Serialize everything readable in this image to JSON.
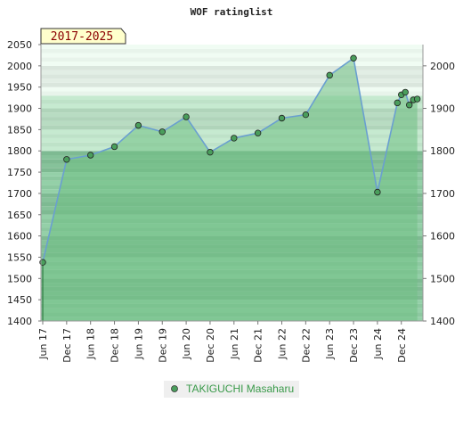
{
  "chart_data": {
    "type": "area",
    "title": "WOF ratinglist",
    "period_label": "2017-2025",
    "ylim": [
      1400,
      2050
    ],
    "yticks_left": [
      1400,
      1450,
      1500,
      1550,
      1600,
      1650,
      1700,
      1750,
      1800,
      1850,
      1900,
      1950,
      2000,
      2050
    ],
    "yticks_right": [
      1400,
      1500,
      1600,
      1700,
      1800,
      1900,
      2000
    ],
    "xtick_labels": [
      "Jun 17",
      "Dec 17",
      "Jun 18",
      "Dec 18",
      "Jun 19",
      "Dec 19",
      "Jun 20",
      "Dec 20",
      "Jun 21",
      "Dec 21",
      "Jun 22",
      "Dec 22",
      "Jun 23",
      "Dec 23",
      "Jun 24",
      "Dec 24"
    ],
    "series": [
      {
        "name": "TAKIGUCHI Masaharu",
        "points": [
          {
            "x": "2017-06",
            "y": 1538
          },
          {
            "x": "2017-12",
            "y": 1780
          },
          {
            "x": "2018-06",
            "y": 1790
          },
          {
            "x": "2018-12",
            "y": 1810
          },
          {
            "x": "2019-06",
            "y": 1860
          },
          {
            "x": "2019-12",
            "y": 1845
          },
          {
            "x": "2020-06",
            "y": 1880
          },
          {
            "x": "2020-12",
            "y": 1797
          },
          {
            "x": "2021-06",
            "y": 1830
          },
          {
            "x": "2021-12",
            "y": 1842
          },
          {
            "x": "2022-06",
            "y": 1877
          },
          {
            "x": "2022-12",
            "y": 1885
          },
          {
            "x": "2023-06",
            "y": 1978
          },
          {
            "x": "2023-12",
            "y": 2018
          },
          {
            "x": "2024-06",
            "y": 1703
          },
          {
            "x": "2024-11",
            "y": 1913
          },
          {
            "x": "2024-12",
            "y": 1932
          },
          {
            "x": "2025-01",
            "y": 1938
          },
          {
            "x": "2025-02",
            "y": 1908
          },
          {
            "x": "2025-03",
            "y": 1920
          },
          {
            "x": "2025-04",
            "y": 1922
          }
        ]
      }
    ],
    "colors": {
      "line": "#6a9fd0",
      "marker_fill": "#4a9e5c",
      "area_fill": "#6fbf84",
      "band_dark": "#7dc492",
      "band_light": "#eef7f0"
    },
    "legend_position": "bottom-center"
  }
}
